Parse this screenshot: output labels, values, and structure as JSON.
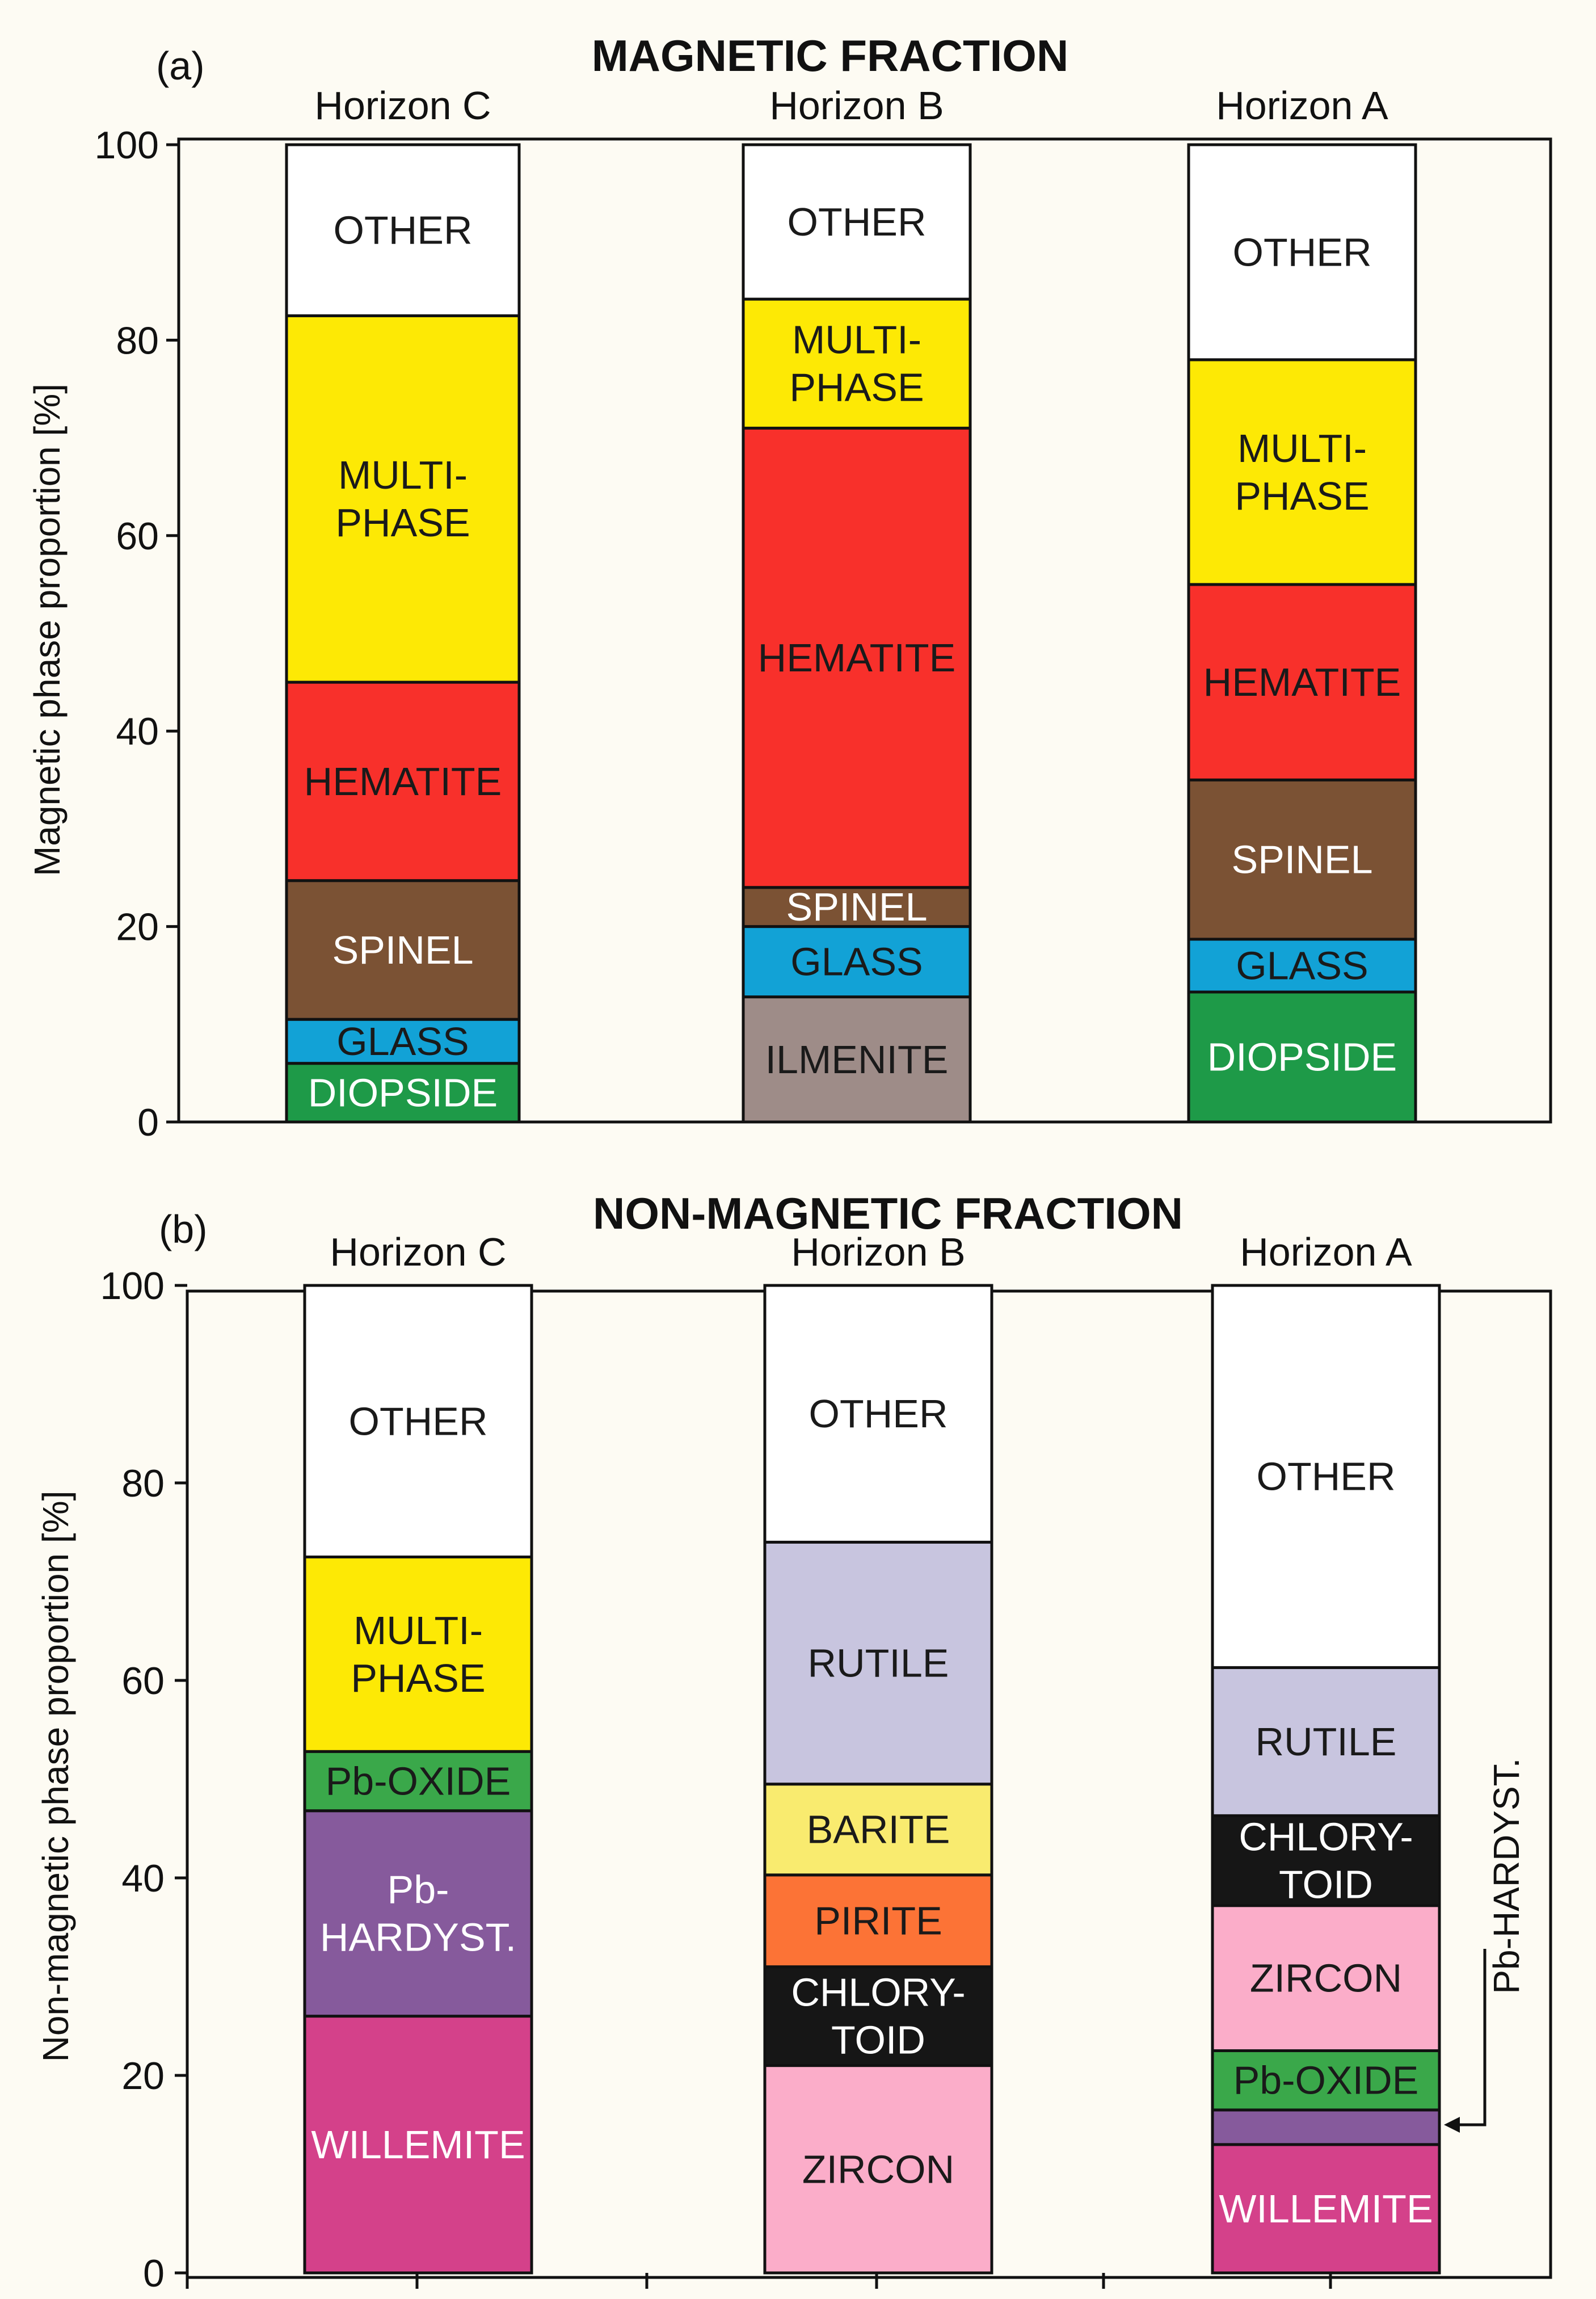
{
  "chart_data": [
    {
      "type": "bar",
      "stacked": true,
      "panel_label": "(a)",
      "title": "MAGNETIC FRACTION",
      "ylabel": "Magnetic phase proportion [%]",
      "ylim": [
        0,
        100
      ],
      "yticks": [
        "0",
        "20",
        "40",
        "60",
        "80",
        "100"
      ],
      "categories": [
        "Horizon C",
        "Horizon B",
        "Horizon A"
      ],
      "bars": [
        {
          "name": "Horizon C",
          "segments": [
            {
              "label": "DIOPSIDE",
              "from": 0,
              "to": 6,
              "color": "#1e9a48",
              "text_color": "#ffffff"
            },
            {
              "label": "GLASS",
              "from": 6,
              "to": 10.5,
              "color": "#12a2d6",
              "text_color": "#1a1a1a"
            },
            {
              "label": "SPINEL",
              "from": 10.5,
              "to": 24.7,
              "color": "#7b5234",
              "text_color": "#ffffff"
            },
            {
              "label": "HEMATITE",
              "from": 24.7,
              "to": 45,
              "color": "#f8302b",
              "text_color": "#1a1a1a"
            },
            {
              "label": "MULTI-\nPHASE",
              "from": 45,
              "to": 82.5,
              "color": "#fde905",
              "text_color": "#1a1a1a"
            },
            {
              "label": "OTHER",
              "from": 82.5,
              "to": 100,
              "color": "#ffffff",
              "text_color": "#1a1a1a"
            }
          ]
        },
        {
          "name": "Horizon B",
          "segments": [
            {
              "label": "ILMENITE",
              "from": 0,
              "to": 12.8,
              "color": "#9e8c88",
              "text_color": "#1a1a1a"
            },
            {
              "label": "GLASS",
              "from": 12.8,
              "to": 20,
              "color": "#12a2d6",
              "text_color": "#1a1a1a"
            },
            {
              "label": "SPINEL",
              "from": 20,
              "to": 24,
              "color": "#7b5234",
              "text_color": "#ffffff"
            },
            {
              "label": "HEMATITE",
              "from": 24,
              "to": 71,
              "color": "#f8302b",
              "text_color": "#1a1a1a"
            },
            {
              "label": "MULTI-\nPHASE",
              "from": 71,
              "to": 84.2,
              "color": "#fde905",
              "text_color": "#1a1a1a"
            },
            {
              "label": "OTHER",
              "from": 84.2,
              "to": 100,
              "color": "#ffffff",
              "text_color": "#1a1a1a"
            }
          ]
        },
        {
          "name": "Horizon A",
          "segments": [
            {
              "label": "DIOPSIDE",
              "from": 0,
              "to": 13.3,
              "color": "#1e9a48",
              "text_color": "#ffffff"
            },
            {
              "label": "GLASS",
              "from": 13.3,
              "to": 18.7,
              "color": "#12a2d6",
              "text_color": "#1a1a1a"
            },
            {
              "label": "SPINEL",
              "from": 18.7,
              "to": 35,
              "color": "#7b5234",
              "text_color": "#ffffff"
            },
            {
              "label": "HEMATITE",
              "from": 35,
              "to": 55,
              "color": "#f8302b",
              "text_color": "#1a1a1a"
            },
            {
              "label": "MULTI-\nPHASE",
              "from": 55,
              "to": 78,
              "color": "#fde905",
              "text_color": "#1a1a1a"
            },
            {
              "label": "OTHER",
              "from": 78,
              "to": 100,
              "color": "#ffffff",
              "text_color": "#1a1a1a"
            }
          ]
        }
      ]
    },
    {
      "type": "bar",
      "stacked": true,
      "panel_label": "(b)",
      "title": "NON-MAGNETIC FRACTION",
      "ylabel": "Non-magnetic phase proportion [%]",
      "ylim": [
        0,
        100
      ],
      "yticks": [
        "0",
        "20",
        "40",
        "60",
        "80",
        "100"
      ],
      "categories": [
        "Horizon C",
        "Horizon B",
        "Horizon A"
      ],
      "bars": [
        {
          "name": "Horizon C",
          "segments": [
            {
              "label": "WILLEMITE",
              "from": 0,
              "to": 26,
              "color": "#d4418a",
              "text_color": "#ffffff"
            },
            {
              "label": "Pb-\nHARDYST.",
              "from": 26,
              "to": 46.8,
              "color": "#865a9c",
              "text_color": "#ffffff"
            },
            {
              "label": "Pb-OXIDE",
              "from": 46.8,
              "to": 52.8,
              "color": "#3aa84a",
              "text_color": "#1a1a1a"
            },
            {
              "label": "MULTI-\nPHASE",
              "from": 52.8,
              "to": 72.5,
              "color": "#fde905",
              "text_color": "#1a1a1a"
            },
            {
              "label": "OTHER",
              "from": 72.5,
              "to": 100,
              "color": "#ffffff",
              "text_color": "#1a1a1a"
            }
          ]
        },
        {
          "name": "Horizon B",
          "segments": [
            {
              "label": "ZIRCON",
              "from": 0,
              "to": 21,
              "color": "#fbadc9",
              "text_color": "#1a1a1a"
            },
            {
              "label": "CHLORY-\nTOID",
              "from": 21,
              "to": 31,
              "color": "#161616",
              "text_color": "#ffffff"
            },
            {
              "label": "PIRITE",
              "from": 31,
              "to": 40.3,
              "color": "#fc7336",
              "text_color": "#1a1a1a"
            },
            {
              "label": "BARITE",
              "from": 40.3,
              "to": 49.5,
              "color": "#f9eb6f",
              "text_color": "#1a1a1a"
            },
            {
              "label": "RUTILE",
              "from": 49.5,
              "to": 74,
              "color": "#c8c5df",
              "text_color": "#1a1a1a"
            },
            {
              "label": "OTHER",
              "from": 74,
              "to": 100,
              "color": "#ffffff",
              "text_color": "#1a1a1a"
            }
          ]
        },
        {
          "name": "Horizon A",
          "segments": [
            {
              "label": "WILLEMITE",
              "from": 0,
              "to": 13,
              "color": "#d4418a",
              "text_color": "#ffffff"
            },
            {
              "label": "",
              "from": 13,
              "to": 16.5,
              "color": "#865a9c",
              "text_color": "#ffffff"
            },
            {
              "label": "Pb-OXIDE",
              "from": 16.5,
              "to": 22.5,
              "color": "#3aa84a",
              "text_color": "#1a1a1a"
            },
            {
              "label": "ZIRCON",
              "from": 22.5,
              "to": 37.2,
              "color": "#fbadc9",
              "text_color": "#1a1a1a"
            },
            {
              "label": "CHLORY-\nTOID",
              "from": 37.2,
              "to": 46.3,
              "color": "#161616",
              "text_color": "#ffffff"
            },
            {
              "label": "RUTILE",
              "from": 46.3,
              "to": 61.3,
              "color": "#c8c5df",
              "text_color": "#1a1a1a"
            },
            {
              "label": "OTHER",
              "from": 61.3,
              "to": 100,
              "color": "#ffffff",
              "text_color": "#1a1a1a"
            }
          ]
        }
      ],
      "annotation": {
        "text": "Pb-HARDYST.",
        "bar": "Horizon A",
        "value": 15
      }
    }
  ]
}
